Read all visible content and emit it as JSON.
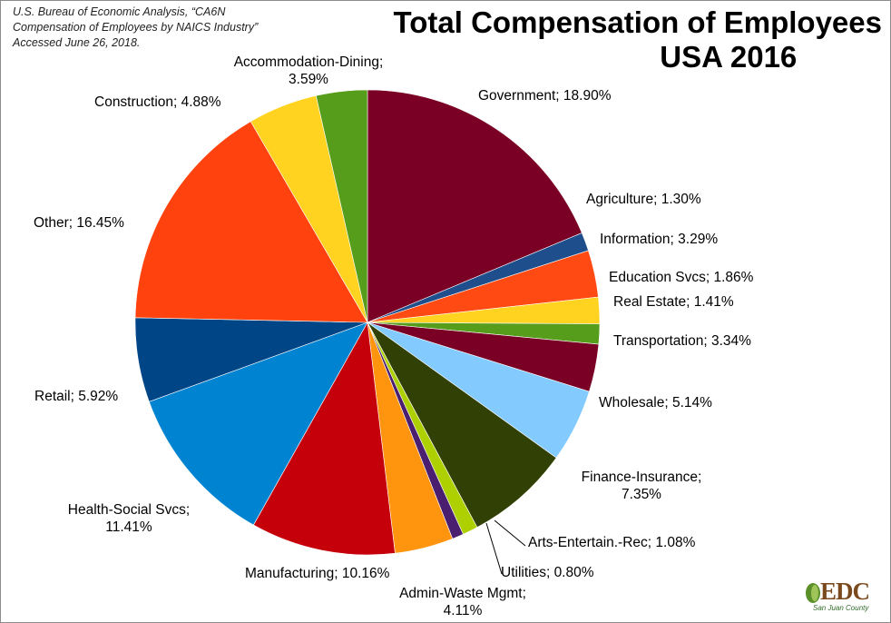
{
  "source": {
    "lines": [
      "U.S. Bureau of Economic Analysis, “CA6N",
      "Compensation of Employees by NAICS Industry”",
      "Accessed June 26, 2018."
    ]
  },
  "title": {
    "line1": "Total Compensation of Employees",
    "line2": "USA 2016"
  },
  "logo": {
    "text": "EDC",
    "subtext": "San Juan County"
  },
  "chart_data": {
    "type": "pie",
    "title": "Total Compensation of Employees USA 2016",
    "unit": "%",
    "start_angle_deg": 0,
    "direction": "clockwise",
    "slices": [
      {
        "name": "Government",
        "value": 18.9,
        "label": [
          "Government; 18.90%"
        ],
        "color": "#7a0026"
      },
      {
        "name": "Agriculture",
        "value": 1.3,
        "label": [
          "Agriculture; 1.30%"
        ],
        "color": "#1f4e8c"
      },
      {
        "name": "Information",
        "value": 3.29,
        "label": [
          "Information; 3.29%"
        ],
        "color": "#ff4a14"
      },
      {
        "name": "Education Svcs",
        "value": 1.86,
        "label": [
          "Education Svcs; 1.86%"
        ],
        "color": "#ffd320"
      },
      {
        "name": "Real Estate",
        "value": 1.41,
        "label": [
          "Real Estate; 1.41%"
        ],
        "color": "#579d1c"
      },
      {
        "name": "Transportation",
        "value": 3.34,
        "label": [
          "Transportation; 3.34%"
        ],
        "color": "#7a0026"
      },
      {
        "name": "Wholesale",
        "value": 5.14,
        "label": [
          "Wholesale; 5.14%"
        ],
        "color": "#83caff"
      },
      {
        "name": "Finance-Insurance",
        "value": 7.35,
        "label": [
          "Finance-Insurance;",
          "7.35%"
        ],
        "color": "#314004"
      },
      {
        "name": "Arts-Entertain.-Rec",
        "value": 1.08,
        "label": [
          "Arts-Entertain.-Rec; 1.08%"
        ],
        "color": "#aecf00"
      },
      {
        "name": "Utilities",
        "value": 0.8,
        "label": [
          "Utilities; 0.80%"
        ],
        "color": "#4b1f6f"
      },
      {
        "name": "Admin-Waste Mgmt",
        "value": 4.11,
        "label": [
          "Admin-Waste Mgmt;",
          "4.11%"
        ],
        "color": "#ff950e"
      },
      {
        "name": "Manufacturing",
        "value": 10.16,
        "label": [
          "Manufacturing; 10.16%"
        ],
        "color": "#c5000b"
      },
      {
        "name": "Health-Social Svcs",
        "value": 11.41,
        "label": [
          "Health-Social Svcs;",
          "11.41%"
        ],
        "color": "#0084d1"
      },
      {
        "name": "Retail",
        "value": 5.92,
        "label": [
          "Retail; 5.92%"
        ],
        "color": "#004586"
      },
      {
        "name": "Other",
        "value": 16.45,
        "label": [
          "Other; 16.45%"
        ],
        "color": "#ff420e"
      },
      {
        "name": "Construction",
        "value": 4.88,
        "label": [
          "Construction; 4.88%"
        ],
        "color": "#ffd320"
      },
      {
        "name": "Accommodation-Dining",
        "value": 3.59,
        "label": [
          "Accommodation-Dining;",
          "3.59%"
        ],
        "color": "#579d1c"
      }
    ]
  }
}
